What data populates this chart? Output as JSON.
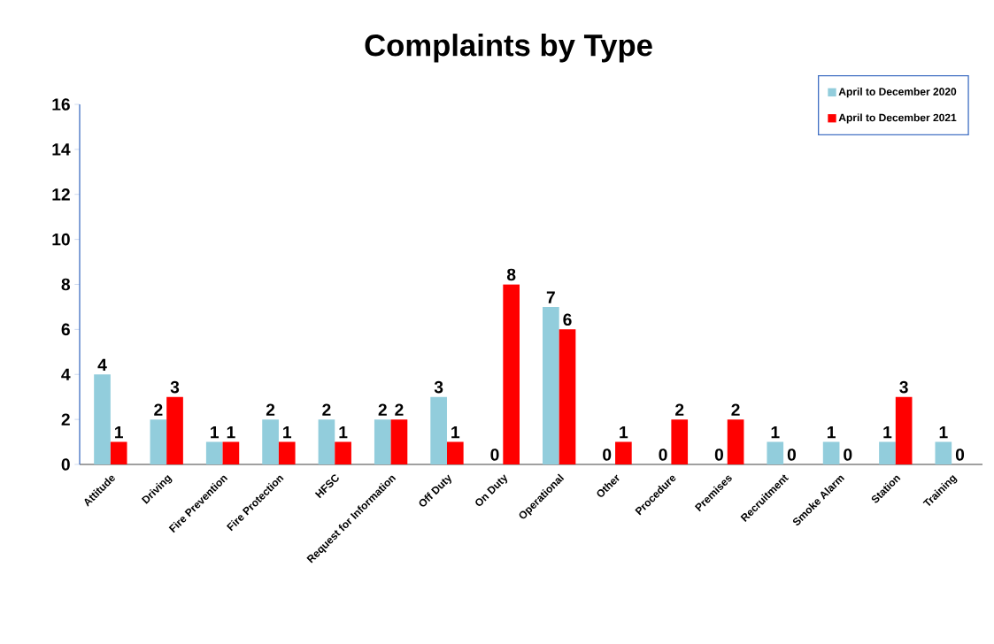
{
  "chart_data": {
    "type": "bar",
    "title": "Complaints by Type",
    "categories": [
      "Attitude",
      "Driving",
      "Fire Prevention",
      "Fire Protection",
      "HFSC",
      "Request for Information",
      "Off Duty",
      "On Duty",
      "Operational",
      "Other",
      "Procedure",
      "Premises",
      "Recruitment",
      "Smoke Alarm",
      "Station",
      "Training"
    ],
    "series": [
      {
        "name": "April to December 2020",
        "color": "#92cddc",
        "values": [
          4,
          2,
          1,
          2,
          2,
          2,
          3,
          0,
          7,
          0,
          0,
          0,
          1,
          1,
          1,
          1
        ]
      },
      {
        "name": "April to December 2021",
        "color": "#ff0000",
        "values": [
          1,
          3,
          1,
          1,
          1,
          2,
          1,
          8,
          6,
          1,
          2,
          2,
          0,
          0,
          3,
          0
        ]
      }
    ],
    "ylim": [
      0,
      16
    ],
    "yticks": [
      0,
      2,
      4,
      6,
      8,
      10,
      12,
      14,
      16
    ],
    "grid": false,
    "legend": "top right",
    "data_labels": true
  }
}
